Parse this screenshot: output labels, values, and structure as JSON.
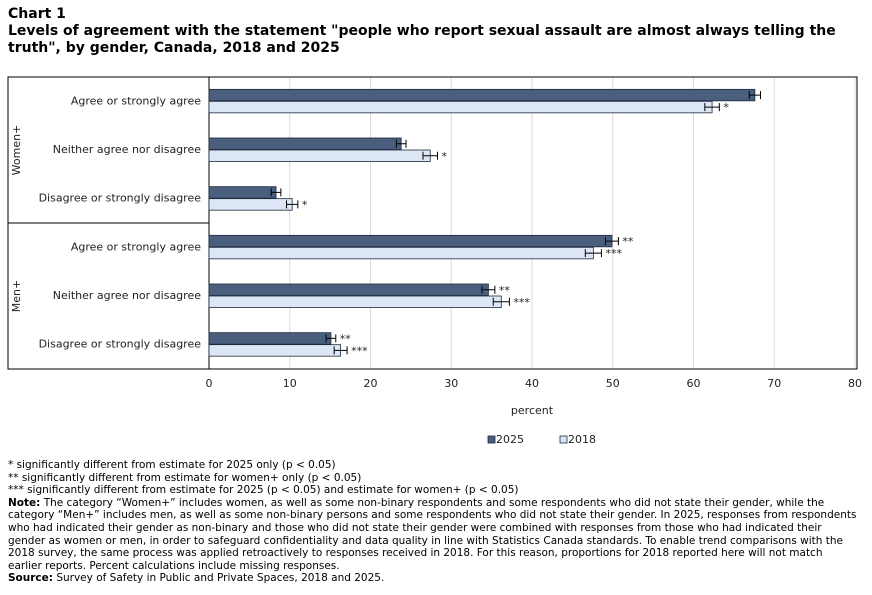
{
  "chart_data": {
    "type": "hbar",
    "label": "Chart 1",
    "title": "Levels of agreement with the statement \"people who report sexual assault are almost always telling the truth\", by gender, Canada, 2018 and 2025",
    "groups": [
      {
        "name": "Women+",
        "categories": [
          "Agree or strongly agree",
          "Neither agree nor disagree",
          "Disagree or strongly disagree"
        ]
      },
      {
        "name": "Men+",
        "categories": [
          "Agree or strongly agree",
          "Neither agree nor disagree",
          "Disagree or strongly disagree"
        ]
      }
    ],
    "series": [
      {
        "name": "2025",
        "color": "#4a5e7e",
        "values": [
          67.6,
          23.8,
          8.3,
          49.9,
          34.6,
          15.1
        ],
        "errors": [
          0.7,
          0.6,
          0.6,
          0.8,
          0.8,
          0.6
        ],
        "labels": [
          null,
          null,
          null,
          "**",
          "**",
          "**"
        ]
      },
      {
        "name": "2018",
        "color": "#dce6f5",
        "values": [
          62.3,
          27.4,
          10.3,
          47.6,
          36.2,
          16.3
        ],
        "errors": [
          0.9,
          0.9,
          0.7,
          1.0,
          1.0,
          0.8
        ],
        "labels": [
          "*",
          "*",
          "*",
          "***",
          "***",
          "***"
        ]
      }
    ],
    "xlabel": "percent",
    "xlim": [
      0,
      80
    ],
    "xticks": [
      0,
      10,
      20,
      30,
      40,
      50,
      60,
      70,
      80
    ],
    "grid": true,
    "legend_position": "bottom",
    "footnotes": [
      "* significantly different from estimate for 2025 only (p < 0.05)",
      "** significantly different from estimate for women+ only (p < 0.05)",
      "*** significantly different from estimate for 2025 (p < 0.05) and estimate for women+ (p < 0.05)"
    ],
    "note": {
      "label": "Note:",
      "text": "The category “Women+” includes women, as well as some non-binary respondents and some respondents who did not state their gender, while the category “Men+” includes men, as well as some non-binary persons and some respondents who did not state their gender. In 2025, responses from respondents who had indicated their gender as non-binary and those who did not state their gender were combined with responses from those who had indicated their gender as women or men, in order to safeguard confidentiality and data quality in line with Statistics Canada standards. To enable trend comparisons with the 2018 survey, the same process was applied retroactively to responses received in 2018. For this reason, proportions for 2018 reported here will not match earlier reports. Percent calculations include missing responses."
    },
    "source": {
      "label": "Source:",
      "text": "Survey of Safety in Public and Private Spaces, 2018 and 2025."
    }
  }
}
